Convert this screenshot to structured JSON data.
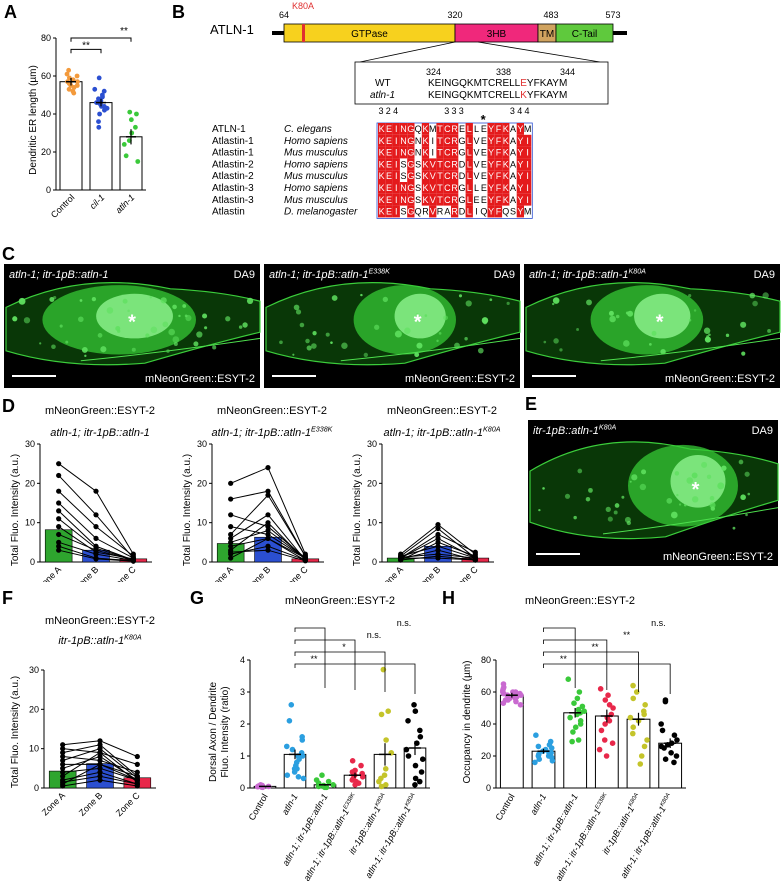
{
  "panel_labels": {
    "A": "A",
    "B": "B",
    "C": "C",
    "D": "D",
    "E": "E",
    "F": "F",
    "G": "G",
    "H": "H"
  },
  "panelA": {
    "ylabel": "Dendritic ER length (µm)",
    "yticks": [
      "0",
      "20",
      "40",
      "60",
      "80"
    ],
    "groups": [
      {
        "label": "Control",
        "italic": false,
        "color": "#f39a3c",
        "mean": 57,
        "sem": 2,
        "points": [
          63,
          61,
          60,
          59,
          58,
          57,
          57,
          56,
          56,
          55,
          55,
          54,
          53,
          52,
          51
        ]
      },
      {
        "label": "cil-1",
        "italic": true,
        "color": "#2b4fd1",
        "mean": 46,
        "sem": 2,
        "points": [
          59,
          53,
          52,
          50,
          49,
          48,
          47,
          46,
          46,
          45,
          44,
          44,
          43,
          42,
          40,
          36,
          33
        ]
      },
      {
        "label": "atln-1",
        "italic": true,
        "color": "#3ac93a",
        "mean": 28,
        "sem": 4,
        "points": [
          41,
          40,
          37,
          33,
          30,
          26,
          24,
          18,
          15
        ]
      }
    ],
    "sig": [
      "**",
      "**"
    ]
  },
  "panelB": {
    "protein": "ATLN-1",
    "mutation": "K80A",
    "positions": [
      "64",
      "320",
      "483",
      "573"
    ],
    "domains": [
      {
        "label": "GTPase",
        "color": "#f7d11e"
      },
      {
        "label": "3HB",
        "color": "#f0287b"
      },
      {
        "label": "TM",
        "color": "#d0a35f"
      },
      {
        "label": "C-Tail",
        "color": "#5fc93d"
      }
    ],
    "zoom": {
      "pos_a": "324",
      "pos_b": "338",
      "pos_c": "344",
      "wt_label": "WT",
      "mut_label": "atln-1",
      "wt_pre": "KEINGQKMTCRELL",
      "wt_hl": "E",
      "wt_post": "YFKAYM",
      "mut_pre": "KEINGQKMTCRELL",
      "mut_hl": "K",
      "mut_post": "YFKAYM"
    },
    "align_numbers": [
      "3\n2\n4",
      "3\n3\n3",
      "3\n4\n4"
    ],
    "star": "*",
    "alignment": [
      {
        "protein": "ATLN-1",
        "species": "C. elegans",
        "seq": "KEINGQKMTCRELLEYFKAYM"
      },
      {
        "protein": "Atlastin-1",
        "species": "Homo sapiens",
        "seq": "KEINGNKITCRGLVEYFKAYI"
      },
      {
        "protein": "Atlastin-1",
        "species": "Mus musculus",
        "seq": "KEINGNKITCRGLVEYFKAYI"
      },
      {
        "protein": "Atlastin-2",
        "species": "Homo sapiens",
        "seq": "KEISGSKVTCRDLVEYFKAYI"
      },
      {
        "protein": "Atlastin-2",
        "species": "Mus musculus",
        "seq": "KEISGSKVTCRDLVEYFKAYI"
      },
      {
        "protein": "Atlastin-3",
        "species": "Homo sapiens",
        "seq": "KEINGSKVTCRGLLEYFKAYI"
      },
      {
        "protein": "Atlastin-3",
        "species": "Mus musculus",
        "seq": "KEINGSKVTCRGLEEYFKAYI"
      },
      {
        "protein": "Atlastin",
        "species": "D. melanogaster",
        "seq": "KEISGQRVRARDLIQYFQSYM"
      }
    ]
  },
  "panelC": [
    {
      "title": "atln-1; itr-1pB::atln-1",
      "sup": "",
      "cell": "DA9",
      "marker": "mNeonGreen::ESYT-2"
    },
    {
      "title": "atln-1; itr-1pB::atln-1",
      "sup": "E338K",
      "cell": "DA9",
      "marker": "mNeonGreen::ESYT-2"
    },
    {
      "title": "atln-1; itr-1pB::atln-1",
      "sup": "K80A",
      "cell": "DA9",
      "marker": "mNeonGreen::ESYT-2"
    }
  ],
  "panelE": {
    "title": "itr-1pB::atln-1",
    "sup": "K80A",
    "cell": "DA9",
    "marker": "mNeonGreen::ESYT-2"
  },
  "panelD": {
    "ylabel": "Total Fluo. Intensity (a.u.)",
    "yticks": [
      "0",
      "10",
      "20",
      "30"
    ],
    "zones": [
      "Zone A",
      "Zone B",
      "Zone C"
    ],
    "zone_colors": [
      "#2ea52e",
      "#2b4fd1",
      "#e8284a"
    ],
    "charts": [
      {
        "marker": "mNeonGreen::ESYT-2",
        "title": "atln-1; itr-1pB::atln-1",
        "sup": "",
        "means": [
          8.2,
          3.0,
          0.8
        ],
        "lines": [
          [
            25,
            18,
            2
          ],
          [
            22,
            12,
            1
          ],
          [
            18,
            9,
            1.5
          ],
          [
            15,
            6,
            1
          ],
          [
            13,
            4,
            0.5
          ],
          [
            11,
            3.5,
            0.5
          ],
          [
            9,
            2.5,
            0.8
          ],
          [
            7,
            3,
            0.5
          ],
          [
            5,
            2,
            0.4
          ],
          [
            4,
            1,
            0.3
          ],
          [
            3,
            0.8,
            0.2
          ]
        ]
      },
      {
        "marker": "mNeonGreen::ESYT-2",
        "title": "atln-1; itr-1pB::atln-1",
        "sup": "E338K",
        "means": [
          4.7,
          6.3,
          0.8
        ],
        "lines": [
          [
            20,
            24,
            2
          ],
          [
            16,
            18,
            1.5
          ],
          [
            12,
            9,
            1
          ],
          [
            9,
            7,
            1
          ],
          [
            7,
            17,
            1.5
          ],
          [
            6,
            12,
            0.5
          ],
          [
            5,
            8,
            1
          ],
          [
            4,
            6,
            1
          ],
          [
            3,
            10,
            0.5
          ],
          [
            2,
            4,
            0.5
          ],
          [
            1,
            6,
            0.4
          ],
          [
            2.5,
            3,
            0.3
          ]
        ]
      },
      {
        "marker": "mNeonGreen::ESYT-2",
        "title": "atln-1; itr-1pB::atln-1",
        "sup": "K80A",
        "means": [
          1.0,
          4.0,
          1.0
        ],
        "lines": [
          [
            2,
            9.5,
            2
          ],
          [
            1.5,
            8.5,
            1
          ],
          [
            1,
            7,
            2.5
          ],
          [
            1,
            6,
            1
          ],
          [
            0.5,
            5,
            1.5
          ],
          [
            1.5,
            4,
            1
          ],
          [
            0.8,
            3,
            0.5
          ],
          [
            1.2,
            2,
            1
          ],
          [
            0.5,
            1.5,
            0.5
          ],
          [
            1,
            1,
            0.5
          ]
        ]
      }
    ]
  },
  "panelF": {
    "marker": "mNeonGreen::ESYT-2",
    "title": "itr-1pB::atln-1",
    "sup": "K80A",
    "ylabel": "Total Fluo. Intensity (a.u.)",
    "yticks": [
      "0",
      "10",
      "20",
      "30"
    ],
    "zones": [
      "Zone A",
      "Zone B",
      "Zone C"
    ],
    "zone_colors": [
      "#2ea52e",
      "#2b4fd1",
      "#e8284a"
    ],
    "means": [
      4.3,
      6.2,
      2.6
    ],
    "lines": [
      [
        11,
        12,
        8
      ],
      [
        10,
        9,
        6
      ],
      [
        9,
        11,
        3
      ],
      [
        8,
        7,
        4
      ],
      [
        7,
        10,
        2.5
      ],
      [
        6,
        6,
        3
      ],
      [
        5,
        8,
        2
      ],
      [
        4,
        5,
        2
      ],
      [
        3,
        9,
        1.5
      ],
      [
        2,
        4,
        1
      ],
      [
        1.5,
        3,
        1
      ],
      [
        1,
        6,
        2
      ],
      [
        0.5,
        2,
        0.5
      ]
    ]
  },
  "panelG": {
    "marker": "mNeonGreen::ESYT-2",
    "ylabel": "Dorsal Axon / Dendrite Fluo. Intensity (ratio)",
    "yticks": [
      "0",
      "1",
      "2",
      "3",
      "4"
    ],
    "groups": [
      {
        "label": "Control",
        "sup": "",
        "italic": false,
        "color": "#c96ad0",
        "mean": 0.05,
        "sem": 0.02,
        "points": [
          0.1,
          0.08,
          0.06,
          0.05,
          0.04,
          0.03,
          0.02
        ]
      },
      {
        "label": "atln-1",
        "sup": "",
        "italic": true,
        "color": "#2b9fe0",
        "mean": 1.05,
        "sem": 0.15,
        "points": [
          2.6,
          2.1,
          1.6,
          1.5,
          1.3,
          1.2,
          1.1,
          1.0,
          0.9,
          0.8,
          0.7,
          0.6,
          0.5,
          0.4,
          0.3,
          1.0,
          0.6,
          0.35
        ]
      },
      {
        "label": "atln-1; itr-1pB::atln-1",
        "sup": "",
        "italic": true,
        "color": "#3ac93a",
        "mean": 0.1,
        "sem": 0.03,
        "points": [
          0.4,
          0.25,
          0.2,
          0.15,
          0.1,
          0.08,
          0.05,
          0.04,
          0.03,
          0.02,
          0.05,
          0.02
        ]
      },
      {
        "label": "atln-1; itr-1pB::atln-1",
        "sup": "E338K",
        "italic": true,
        "color": "#e8284a",
        "mean": 0.4,
        "sem": 0.08,
        "points": [
          0.85,
          0.7,
          0.55,
          0.5,
          0.45,
          0.4,
          0.35,
          0.3,
          0.25,
          0.2,
          0.15,
          0.1
        ]
      },
      {
        "label": "itr-1pB::atln-1",
        "sup": "K80A",
        "italic": true,
        "color": "#c4c42a",
        "mean": 1.05,
        "sem": 0.35,
        "points": [
          3.7,
          2.4,
          2.3,
          1.5,
          1.1,
          0.6,
          0.4,
          0.3,
          0.2,
          0.1,
          0.05
        ]
      },
      {
        "label": "atln-1; itr-1pB::atln-1",
        "sup": "K80A",
        "italic": true,
        "color": "#000000",
        "mean": 1.25,
        "sem": 0.22,
        "points": [
          2.6,
          2.4,
          2.1,
          1.8,
          1.6,
          1.4,
          1.2,
          1.0,
          0.9,
          0.7,
          0.5,
          0.3,
          0.2,
          0.1
        ]
      }
    ],
    "sig": [
      "**",
      "*",
      "n.s.",
      "n.s."
    ]
  },
  "panelH": {
    "marker": "mNeonGreen::ESYT-2",
    "ylabel": "Occupancy in dendrite (µm)",
    "yticks": [
      "0",
      "20",
      "40",
      "60",
      "80"
    ],
    "groups": [
      {
        "label": "Control",
        "sup": "",
        "italic": false,
        "color": "#c96ad0",
        "mean": 58,
        "sem": 1.5,
        "points": [
          65,
          63,
          62,
          61,
          60,
          60,
          59,
          59,
          58,
          58,
          57,
          57,
          56,
          55,
          55,
          54,
          53,
          52,
          60,
          56
        ]
      },
      {
        "label": "atln-1",
        "sup": "",
        "italic": true,
        "color": "#2b9fe0",
        "mean": 23,
        "sem": 1.5,
        "points": [
          33,
          29,
          27,
          26,
          25,
          24,
          23,
          22,
          22,
          21,
          20,
          20,
          19,
          18,
          17,
          16
        ]
      },
      {
        "label": "atln-1; itr-1pB::atln-1",
        "sup": "",
        "italic": true,
        "color": "#3ac93a",
        "mean": 47,
        "sem": 3,
        "points": [
          68,
          60,
          56,
          53,
          51,
          49,
          48,
          47,
          46,
          44,
          42,
          40,
          38,
          35,
          30,
          29
        ]
      },
      {
        "label": "atln-1; itr-1pB::atln-1",
        "sup": "E338K",
        "italic": true,
        "color": "#e8284a",
        "mean": 45,
        "sem": 4,
        "points": [
          62,
          58,
          55,
          52,
          50,
          46,
          44,
          42,
          40,
          36,
          30,
          28,
          24,
          20
        ]
      },
      {
        "label": "itr-1pB::atln-1",
        "sup": "K80A",
        "italic": true,
        "color": "#c4c42a",
        "mean": 43,
        "sem": 4,
        "points": [
          64,
          60,
          56,
          52,
          48,
          46,
          44,
          42,
          38,
          34,
          30,
          26,
          20,
          15
        ]
      },
      {
        "label": "atln-1; itr-1pB::atln-1",
        "sup": "K80A",
        "italic": true,
        "color": "#000000",
        "mean": 28,
        "sem": 3,
        "points": [
          55,
          54,
          40,
          36,
          33,
          30,
          28,
          27,
          26,
          25,
          22,
          20,
          18,
          16
        ]
      }
    ],
    "sig": [
      "**",
      "**",
      "**",
      "n.s."
    ]
  }
}
